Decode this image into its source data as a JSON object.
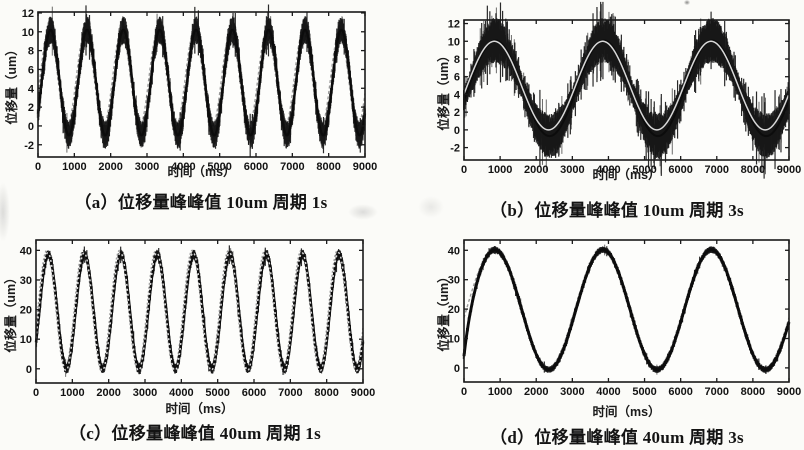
{
  "figure": {
    "background_color": "#fbfbf8",
    "plot_background": "#fdfdfb",
    "axis_color": "#1a1a1a",
    "tick_label_color": "#131313",
    "measured_color": "#0c0c0c",
    "reference_color": "#999999",
    "reference_overlay_color": "#d8d8d8"
  },
  "chart_data": [
    {
      "id": "a",
      "type": "line",
      "caption": "（a）位移量峰峰值 10um 周期 1s",
      "title": "位移量峰峰值 10um 周期 1s",
      "xlabel": "时间（ms）",
      "ylabel": "位移量（um）",
      "xlim": [
        0,
        9000
      ],
      "ylim": [
        -3.3,
        12.1
      ],
      "xticks": [
        0,
        1000,
        2000,
        3000,
        4000,
        5000,
        6000,
        7000,
        8000,
        9000
      ],
      "yticks": [
        12,
        10,
        8,
        6,
        4,
        2,
        0,
        -2
      ],
      "grid": false,
      "legend": "none",
      "peak_to_peak_um": 10,
      "period_s": 1,
      "series": [
        {
          "name": "reference-command",
          "waveform": "sine",
          "mean_um": 5,
          "amplitude_um": 5,
          "period_ms": 1000,
          "peak_at_ms": 300,
          "style": "dashed-gray"
        },
        {
          "name": "measured-displacement",
          "waveform": "sine",
          "mean_um": 4.6,
          "amplitude_um": 5.6,
          "period_ms": 1000,
          "peak_at_ms": 350,
          "noise_pp_um": 1.5,
          "style": "noisy-black"
        }
      ]
    },
    {
      "id": "b",
      "type": "line",
      "caption": "（b）位移量峰峰值 10um 周期 3s",
      "title": "位移量峰峰值 10um 周期 3s",
      "xlabel": "时间（ms）",
      "ylabel": "位移量（um）",
      "xlim": [
        0,
        9000
      ],
      "ylim": [
        -3.4,
        12.4
      ],
      "xticks": [
        0,
        1000,
        2000,
        3000,
        4000,
        5000,
        6000,
        7000,
        8000,
        9000
      ],
      "yticks": [
        12,
        10,
        8,
        6,
        4,
        2,
        0,
        -2
      ],
      "grid": false,
      "legend": "none",
      "peak_to_peak_um": 10,
      "period_s": 3,
      "series": [
        {
          "name": "reference-command",
          "waveform": "sine",
          "mean_um": 5,
          "amplitude_um": 5,
          "period_ms": 3000,
          "peak_at_ms": 840,
          "style": "light-overlay"
        },
        {
          "name": "measured-displacement",
          "waveform": "sine",
          "mean_um": 4.7,
          "amplitude_um": 5.4,
          "period_ms": 3000,
          "peak_at_ms": 870,
          "noise_pp_um": 2.6,
          "style": "noisy-black"
        }
      ]
    },
    {
      "id": "c",
      "type": "line",
      "caption": "（c）位移量峰峰值 40um 周期 1s",
      "title": "位移量峰峰值 40um 周期 1s",
      "xlabel": "时间（ms）",
      "ylabel": "位移量（um）",
      "xlim": [
        0,
        9000
      ],
      "ylim": [
        -4.8,
        43.5
      ],
      "xticks": [
        0,
        1000,
        2000,
        3000,
        4000,
        5000,
        6000,
        7000,
        8000,
        9000
      ],
      "yticks": [
        40,
        30,
        20,
        10,
        0
      ],
      "grid": false,
      "legend": "none",
      "peak_to_peak_um": 40,
      "period_s": 1,
      "series": [
        {
          "name": "reference-command",
          "waveform": "sine",
          "mean_um": 20,
          "amplitude_um": 20,
          "period_ms": 1000,
          "peak_at_ms": 300,
          "style": "dashed-gray"
        },
        {
          "name": "measured-displacement",
          "waveform": "sine",
          "mean_um": 19.3,
          "amplitude_um": 19.3,
          "period_ms": 1000,
          "peak_at_ms": 340,
          "noise_pp_um": 2.4,
          "style": "noisy-black"
        }
      ]
    },
    {
      "id": "d",
      "type": "line",
      "caption": "（d）位移量峰峰值 40um 周期 3s",
      "title": "位移量峰峰值 40um 周期 3s",
      "xlabel": "时间（ms）",
      "ylabel": "位移量（um）",
      "xlim": [
        0,
        9000
      ],
      "ylim": [
        -4.8,
        43.5
      ],
      "xticks": [
        0,
        1000,
        2000,
        3000,
        4000,
        5000,
        6000,
        7000,
        8000,
        9000
      ],
      "yticks": [
        40,
        30,
        20,
        10,
        0
      ],
      "grid": false,
      "legend": "none",
      "peak_to_peak_um": 40,
      "period_s": 3,
      "series": [
        {
          "name": "reference-command",
          "waveform": "sine",
          "mean_um": 20,
          "amplitude_um": 20,
          "period_ms": 3000,
          "peak_at_ms": 820,
          "style": "dashed-gray"
        },
        {
          "name": "measured-displacement",
          "waveform": "sine",
          "mean_um": 19.8,
          "amplitude_um": 20.4,
          "period_ms": 3000,
          "peak_at_ms": 850,
          "noise_pp_um": 1.6,
          "style": "noisy-black",
          "start_transient": {
            "start_um": 4,
            "tau_ms": 170
          }
        }
      ]
    }
  ]
}
